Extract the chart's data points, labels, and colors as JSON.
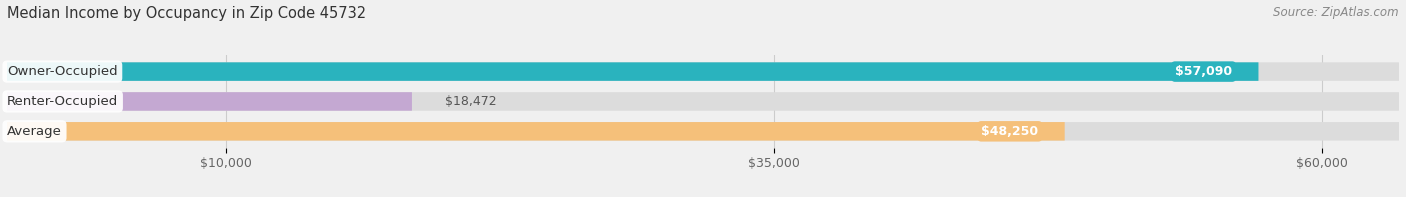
{
  "title": "Median Income by Occupancy in Zip Code 45732",
  "source": "Source: ZipAtlas.com",
  "categories": [
    "Owner-Occupied",
    "Renter-Occupied",
    "Average"
  ],
  "values": [
    57090,
    18472,
    48250
  ],
  "bar_colors": [
    "#2ab3be",
    "#c4a8d2",
    "#f5c07a"
  ],
  "value_labels": [
    "$57,090",
    "$18,472",
    "$48,250"
  ],
  "x_ticks": [
    10000,
    35000,
    60000
  ],
  "x_tick_labels": [
    "$10,000",
    "$35,000",
    "$60,000"
  ],
  "xlim_max": 63500,
  "background_color": "#f0f0f0",
  "bar_background_color": "#dcdcdc",
  "title_fontsize": 10.5,
  "source_fontsize": 8.5,
  "label_fontsize": 9.5,
  "value_fontsize": 9,
  "tick_fontsize": 9
}
